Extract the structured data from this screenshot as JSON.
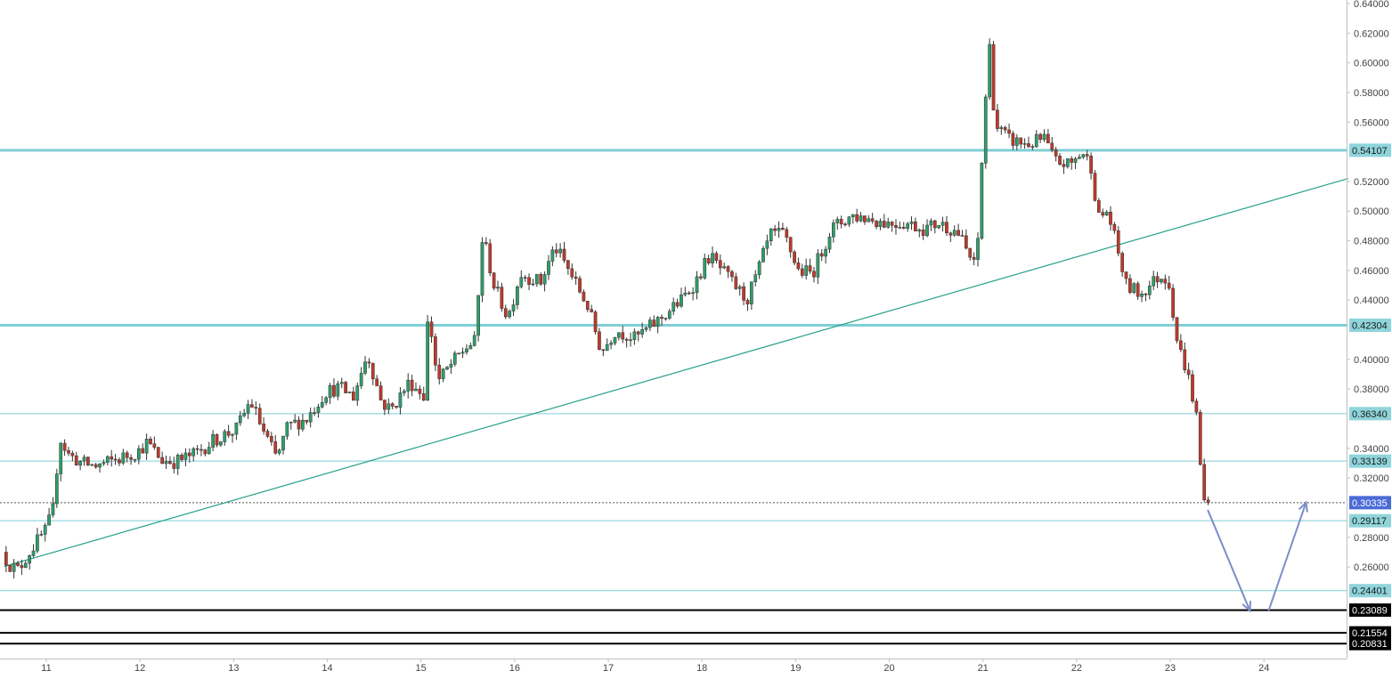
{
  "chart_data": {
    "type": "candlestick",
    "x_axis": {
      "tick_labels": [
        "11",
        "12",
        "13",
        "14",
        "15",
        "16",
        "17",
        "18",
        "19",
        "20",
        "21",
        "22",
        "23",
        "24"
      ],
      "range_days": [
        10.55,
        24.95
      ]
    },
    "y_axis": {
      "position": "right",
      "range": [
        0.1985,
        0.6405
      ],
      "tick_labels": [
        "0.64000",
        "0.62000",
        "0.60000",
        "0.58000",
        "0.56000",
        "0.52000",
        "0.50000",
        "0.48000",
        "0.46000",
        "0.44000",
        "0.40000",
        "0.38000",
        "0.34000",
        "0.32000",
        "0.28000",
        "0.26000"
      ]
    },
    "current_price": {
      "value": 0.30335,
      "label": "0.30335",
      "color": "#4a6bd6"
    },
    "horizontal_levels": [
      {
        "value": 0.54107,
        "label": "0.54107",
        "style": "thick",
        "color": "#7fcfd6"
      },
      {
        "value": 0.42304,
        "label": "0.42304",
        "style": "thick",
        "color": "#7fcfd6"
      },
      {
        "value": 0.3634,
        "label": "0.36340",
        "style": "thin",
        "color": "#7fcfd6"
      },
      {
        "value": 0.33139,
        "label": "0.33139",
        "style": "thin",
        "color": "#7fcfd6"
      },
      {
        "value": 0.29117,
        "label": "0.29117",
        "style": "thin",
        "color": "#7fcfd6"
      },
      {
        "value": 0.24401,
        "label": "0.24401",
        "style": "thin",
        "color": "#7fcfd6"
      },
      {
        "value": 0.23089,
        "label": "0.23089",
        "style": "black",
        "color": "#000000"
      },
      {
        "value": 0.21554,
        "label": "0.21554",
        "style": "black",
        "color": "#000000"
      },
      {
        "value": 0.20831,
        "label": "0.20831",
        "style": "black",
        "color": "#000000"
      }
    ],
    "trendline": {
      "from": {
        "day": 10.55,
        "price": 0.2603
      },
      "to": {
        "day": 24.9,
        "price": 0.522
      },
      "color": "#26a08a"
    },
    "projection_arrows": [
      {
        "from": {
          "day": 23.4,
          "price": 0.2985
        },
        "to": {
          "day": 23.85,
          "price": 0.2305
        }
      },
      {
        "from": {
          "day": 24.05,
          "price": 0.2305
        },
        "to": {
          "day": 24.45,
          "price": 0.3035
        }
      }
    ],
    "colors": {
      "up": "#2e9e6b",
      "down": "#c0392b",
      "arrow": "#7b8ec8",
      "axis_text": "#444444"
    },
    "price_path": [
      [
        10.55,
        0.27
      ],
      [
        10.62,
        0.262
      ],
      [
        10.72,
        0.258
      ],
      [
        10.82,
        0.268
      ],
      [
        10.92,
        0.277
      ],
      [
        11.02,
        0.285
      ],
      [
        11.1,
        0.3
      ],
      [
        11.16,
        0.348
      ],
      [
        11.25,
        0.336
      ],
      [
        11.4,
        0.33
      ],
      [
        11.55,
        0.328
      ],
      [
        11.8,
        0.333
      ],
      [
        12.0,
        0.338
      ],
      [
        12.1,
        0.344
      ],
      [
        12.25,
        0.332
      ],
      [
        12.4,
        0.331
      ],
      [
        12.6,
        0.336
      ],
      [
        12.8,
        0.345
      ],
      [
        12.92,
        0.349
      ],
      [
        13.05,
        0.353
      ],
      [
        13.2,
        0.372
      ],
      [
        13.35,
        0.35
      ],
      [
        13.48,
        0.333
      ],
      [
        13.6,
        0.355
      ],
      [
        13.8,
        0.36
      ],
      [
        14.0,
        0.378
      ],
      [
        14.15,
        0.381
      ],
      [
        14.3,
        0.375
      ],
      [
        14.45,
        0.404
      ],
      [
        14.6,
        0.371
      ],
      [
        14.7,
        0.366
      ],
      [
        14.9,
        0.385
      ],
      [
        15.05,
        0.376
      ],
      [
        15.1,
        0.433
      ],
      [
        15.2,
        0.385
      ],
      [
        15.35,
        0.397
      ],
      [
        15.5,
        0.408
      ],
      [
        15.6,
        0.412
      ],
      [
        15.68,
        0.485
      ],
      [
        15.8,
        0.45
      ],
      [
        15.95,
        0.428
      ],
      [
        16.08,
        0.458
      ],
      [
        16.3,
        0.452
      ],
      [
        16.45,
        0.476
      ],
      [
        16.6,
        0.46
      ],
      [
        16.8,
        0.436
      ],
      [
        16.95,
        0.405
      ],
      [
        17.1,
        0.42
      ],
      [
        17.3,
        0.414
      ],
      [
        17.55,
        0.426
      ],
      [
        17.8,
        0.44
      ],
      [
        17.95,
        0.452
      ],
      [
        18.1,
        0.47
      ],
      [
        18.3,
        0.455
      ],
      [
        18.5,
        0.44
      ],
      [
        18.6,
        0.456
      ],
      [
        18.75,
        0.484
      ],
      [
        18.9,
        0.484
      ],
      [
        19.05,
        0.46
      ],
      [
        19.2,
        0.458
      ],
      [
        19.4,
        0.488
      ],
      [
        19.62,
        0.497
      ],
      [
        19.8,
        0.495
      ],
      [
        20.0,
        0.492
      ],
      [
        20.2,
        0.492
      ],
      [
        20.4,
        0.488
      ],
      [
        20.55,
        0.492
      ],
      [
        20.75,
        0.486
      ],
      [
        20.95,
        0.46
      ],
      [
        21.03,
        0.56
      ],
      [
        21.09,
        0.612
      ],
      [
        21.15,
        0.558
      ],
      [
        21.3,
        0.548
      ],
      [
        21.5,
        0.545
      ],
      [
        21.68,
        0.549
      ],
      [
        21.78,
        0.534
      ],
      [
        21.95,
        0.531
      ],
      [
        22.08,
        0.54
      ],
      [
        22.18,
        0.53
      ],
      [
        22.25,
        0.495
      ],
      [
        22.35,
        0.5
      ],
      [
        22.45,
        0.476
      ],
      [
        22.55,
        0.45
      ],
      [
        22.7,
        0.444
      ],
      [
        22.9,
        0.456
      ],
      [
        23.0,
        0.455
      ],
      [
        23.1,
        0.41
      ],
      [
        23.2,
        0.392
      ],
      [
        23.3,
        0.362
      ],
      [
        23.37,
        0.305
      ],
      [
        23.42,
        0.303
      ]
    ]
  }
}
